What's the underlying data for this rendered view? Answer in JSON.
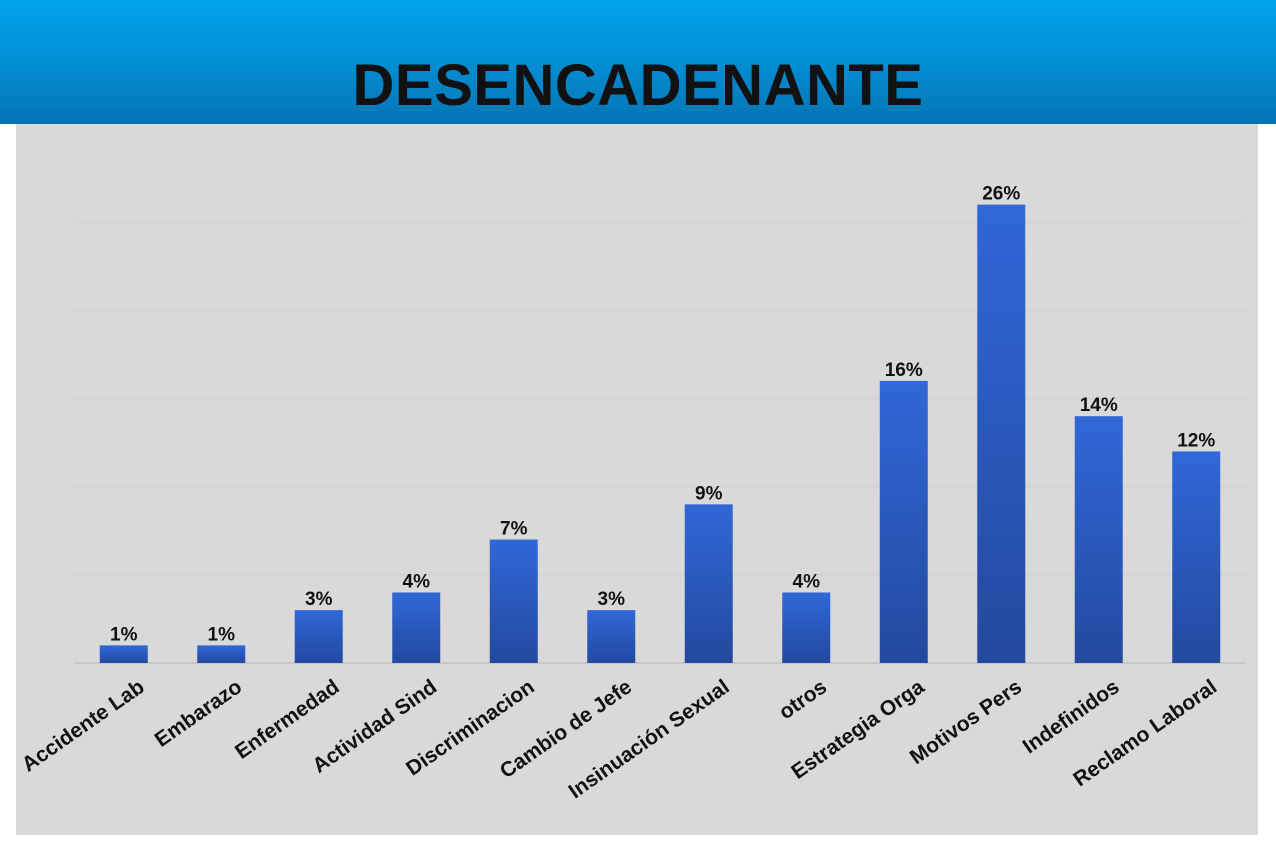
{
  "chart_data": {
    "type": "bar",
    "title": "DESENCADENANTE",
    "categories": [
      "Accidente Lab",
      "Embarazo",
      "Enfermedad",
      "Actividad Sind",
      "Discriminacion",
      "Cambio de Jefe",
      "Insinuación Sexual",
      "otros",
      "Estrategia Orga",
      "Motivos Pers",
      "Indefinidos",
      "Reclamo Laboral"
    ],
    "values": [
      1,
      1,
      3,
      4,
      7,
      3,
      9,
      4,
      16,
      26,
      14,
      12
    ],
    "data_labels": [
      "1%",
      "1%",
      "3%",
      "4%",
      "7%",
      "3%",
      "9%",
      "4%",
      "16%",
      "26%",
      "14%",
      "12%"
    ],
    "ylim": [
      0,
      28
    ],
    "grid": true,
    "bar_color_top": "#3068d8",
    "bar_color_bottom": "#23499e",
    "header_color": "#0291d6",
    "plot_background": "#d9d9d9"
  }
}
